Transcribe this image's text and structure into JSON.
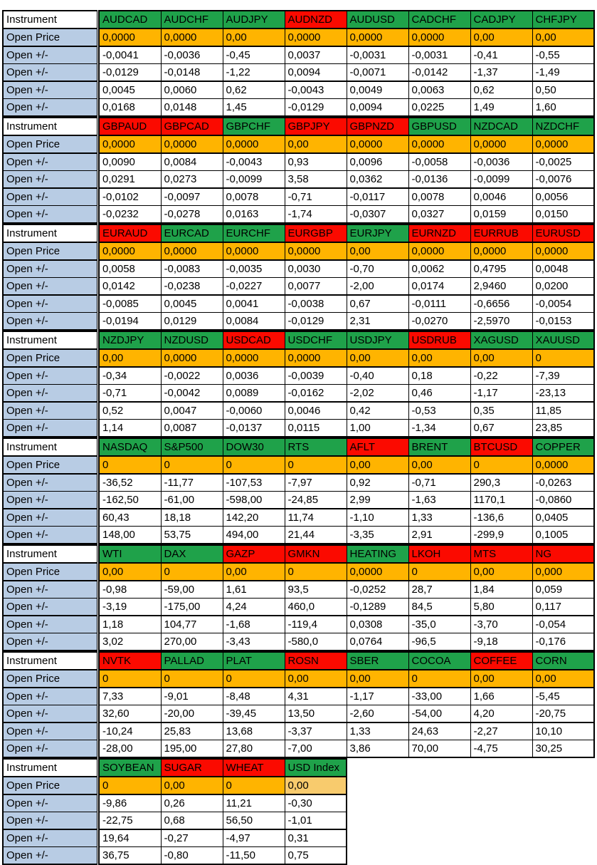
{
  "labels": {
    "instrument": "Instrument",
    "open_price": "Open Price",
    "open_change": "Open +/-"
  },
  "colors": {
    "green": "#1FA24A",
    "red": "#FB0A00",
    "orange": "#FFB400",
    "light_orange": "#F8CB6D",
    "label_blue": "#B8CCE4",
    "border": "#000000"
  },
  "blocks": [
    {
      "instruments": [
        {
          "name": "AUDCAD",
          "color": "green"
        },
        {
          "name": "AUDCHF",
          "color": "green"
        },
        {
          "name": "AUDJPY",
          "color": "green"
        },
        {
          "name": "AUDNZD",
          "color": "red"
        },
        {
          "name": "AUDUSD",
          "color": "green"
        },
        {
          "name": "CADCHF",
          "color": "green"
        },
        {
          "name": "CADJPY",
          "color": "green"
        },
        {
          "name": "CHFJPY",
          "color": "green"
        }
      ],
      "open_price": [
        "0,0000",
        "0,0000",
        "0,00",
        "0,0000",
        "0,0000",
        "0,0000",
        "0,00",
        "0,00"
      ],
      "rows": [
        [
          "-0,0041",
          "-0,0036",
          "-0,45",
          "0,0037",
          "-0,0031",
          "-0,0031",
          "-0,41",
          "-0,55"
        ],
        [
          "-0,0129",
          "-0,0148",
          "-1,22",
          "0,0094",
          "-0,0071",
          "-0,0142",
          "-1,37",
          "-1,49"
        ],
        [
          "0,0045",
          "0,0060",
          "0,62",
          "-0,0043",
          "0,0049",
          "0,0063",
          "0,62",
          "0,50"
        ],
        [
          "0,0168",
          "0,0148",
          "1,45",
          "-0,0129",
          "0,0094",
          "0,0225",
          "1,49",
          "1,60"
        ]
      ]
    },
    {
      "instruments": [
        {
          "name": "GBPAUD",
          "color": "red"
        },
        {
          "name": "GBPCAD",
          "color": "red"
        },
        {
          "name": "GBPCHF",
          "color": "green"
        },
        {
          "name": "GBPJPY",
          "color": "red"
        },
        {
          "name": "GBPNZD",
          "color": "red"
        },
        {
          "name": "GBPUSD",
          "color": "green"
        },
        {
          "name": "NZDCAD",
          "color": "green"
        },
        {
          "name": "NZDCHF",
          "color": "green"
        }
      ],
      "open_price": [
        "0,0000",
        "0,0000",
        "0,0000",
        "0,00",
        "0,0000",
        "0,0000",
        "0,0000",
        "0,0000"
      ],
      "rows": [
        [
          "0,0090",
          "0,0084",
          "-0,0043",
          "0,93",
          "0,0096",
          "-0,0058",
          "-0,0036",
          "-0,0025"
        ],
        [
          "0,0291",
          "0,0273",
          "-0,0099",
          "3,58",
          "0,0362",
          "-0,0136",
          "-0,0099",
          "-0,0076"
        ],
        [
          "-0,0102",
          "-0,0097",
          "0,0078",
          "-0,71",
          "-0,0117",
          "0,0078",
          "0,0046",
          "0,0056"
        ],
        [
          "-0,0232",
          "-0,0278",
          "0,0163",
          "-1,74",
          "-0,0307",
          "0,0327",
          "0,0159",
          "0,0150"
        ]
      ]
    },
    {
      "instruments": [
        {
          "name": "EURAUD",
          "color": "red"
        },
        {
          "name": "EURCAD",
          "color": "green"
        },
        {
          "name": "EURCHF",
          "color": "green"
        },
        {
          "name": "EURGBP",
          "color": "red"
        },
        {
          "name": "EURJPY",
          "color": "green"
        },
        {
          "name": "EURNZD",
          "color": "red"
        },
        {
          "name": "EURRUB",
          "color": "red"
        },
        {
          "name": "EURUSD",
          "color": "red"
        }
      ],
      "open_price": [
        "0,0000",
        "0,0000",
        "0,0000",
        "0,0000",
        "0,00",
        "0,0000",
        "0,0000",
        "0,0000"
      ],
      "rows": [
        [
          "0,0058",
          "-0,0083",
          "-0,0035",
          "0,0030",
          "-0,70",
          "0,0062",
          "0,4795",
          "0,0048"
        ],
        [
          "0,0142",
          "-0,0238",
          "-0,0227",
          "0,0077",
          "-2,00",
          "0,0174",
          "2,9460",
          "0,0200"
        ],
        [
          "-0,0085",
          "0,0045",
          "0,0041",
          "-0,0038",
          "0,67",
          "-0,0111",
          "-0,6656",
          "-0,0054"
        ],
        [
          "-0,0194",
          "0,0129",
          "0,0084",
          "-0,0129",
          "2,31",
          "-0,0270",
          "-2,5970",
          "-0,0153"
        ]
      ]
    },
    {
      "instruments": [
        {
          "name": "NZDJPY",
          "color": "green"
        },
        {
          "name": "NZDUSD",
          "color": "green"
        },
        {
          "name": "USDCAD",
          "color": "red"
        },
        {
          "name": "USDCHF",
          "color": "green"
        },
        {
          "name": "USDJPY",
          "color": "green"
        },
        {
          "name": "USDRUB",
          "color": "red"
        },
        {
          "name": "XAGUSD",
          "color": "green"
        },
        {
          "name": "XAUUSD",
          "color": "green"
        }
      ],
      "open_price": [
        "0,00",
        "0,0000",
        "0,0000",
        "0,0000",
        "0,00",
        "0,00",
        "0,00",
        "0"
      ],
      "rows": [
        [
          "-0,34",
          "-0,0022",
          "0,0036",
          "-0,0039",
          "-0,40",
          "0,18",
          "-0,22",
          "-7,39"
        ],
        [
          "-0,71",
          "-0,0042",
          "0,0089",
          "-0,0162",
          "-2,02",
          "0,46",
          "-1,17",
          "-23,13"
        ],
        [
          "0,52",
          "0,0047",
          "-0,0060",
          "0,0046",
          "0,42",
          "-0,53",
          "0,35",
          "11,85"
        ],
        [
          "1,14",
          "0,0087",
          "-0,0137",
          "0,0115",
          "1,00",
          "-1,34",
          "0,67",
          "23,85"
        ]
      ]
    },
    {
      "instruments": [
        {
          "name": "NASDAQ",
          "color": "green"
        },
        {
          "name": "S&P500",
          "color": "green"
        },
        {
          "name": "DOW30",
          "color": "green"
        },
        {
          "name": "RTS",
          "color": "green"
        },
        {
          "name": "AFLT",
          "color": "red"
        },
        {
          "name": "BRENT",
          "color": "green"
        },
        {
          "name": "BTCUSD",
          "color": "red"
        },
        {
          "name": "COPPER",
          "color": "green"
        }
      ],
      "open_price": [
        "0",
        "0",
        "0",
        "0",
        "0,00",
        "0,00",
        "0",
        "0,0000"
      ],
      "rows": [
        [
          "-36,52",
          "-11,77",
          "-107,53",
          "-7,97",
          "0,92",
          "-0,71",
          "290,3",
          "-0,0263"
        ],
        [
          "-162,50",
          "-61,00",
          "-598,00",
          "-24,85",
          "2,99",
          "-1,63",
          "1170,1",
          "-0,0860"
        ],
        [
          "60,43",
          "18,18",
          "142,20",
          "11,74",
          "-1,10",
          "1,33",
          "-136,6",
          "0,0405"
        ],
        [
          "148,00",
          "53,75",
          "494,00",
          "21,44",
          "-3,35",
          "2,91",
          "-299,9",
          "0,1005"
        ]
      ]
    },
    {
      "instruments": [
        {
          "name": "WTI",
          "color": "green"
        },
        {
          "name": "DAX",
          "color": "green"
        },
        {
          "name": "GAZP",
          "color": "red"
        },
        {
          "name": "GMKN",
          "color": "red"
        },
        {
          "name": "HEATING",
          "color": "green"
        },
        {
          "name": "LKOH",
          "color": "red"
        },
        {
          "name": "MTS",
          "color": "red"
        },
        {
          "name": "NG",
          "color": "red"
        }
      ],
      "open_price": [
        "0,00",
        "0",
        "0,00",
        "0",
        "0,0000",
        "0",
        "0,00",
        "0,000"
      ],
      "rows": [
        [
          "-0,98",
          "-59,00",
          "1,61",
          "93,5",
          "-0,0252",
          "28,7",
          "1,84",
          "0,059"
        ],
        [
          "-3,19",
          "-175,00",
          "4,24",
          "460,0",
          "-0,1289",
          "84,5",
          "5,80",
          "0,117"
        ],
        [
          "1,18",
          "104,77",
          "-1,68",
          "-119,4",
          "0,0308",
          "-35,0",
          "-3,70",
          "-0,054"
        ],
        [
          "3,02",
          "270,00",
          "-3,43",
          "-580,0",
          "0,0764",
          "-96,5",
          "-9,18",
          "-0,176"
        ]
      ]
    },
    {
      "instruments": [
        {
          "name": "NVTK",
          "color": "red"
        },
        {
          "name": "PALLAD",
          "color": "green"
        },
        {
          "name": "PLAT",
          "color": "green"
        },
        {
          "name": "ROSN",
          "color": "red"
        },
        {
          "name": "SBER",
          "color": "green"
        },
        {
          "name": "COCOA",
          "color": "green"
        },
        {
          "name": "COFFEE",
          "color": "red"
        },
        {
          "name": "CORN",
          "color": "green"
        }
      ],
      "open_price": [
        "0",
        "0",
        "0",
        "0,00",
        "0,00",
        "0",
        "0,00",
        "0,00"
      ],
      "rows": [
        [
          "7,33",
          "-9,01",
          "-8,48",
          "4,31",
          "-1,17",
          "-33,00",
          "1,66",
          "-5,45"
        ],
        [
          "32,60",
          "-20,00",
          "-39,45",
          "13,50",
          "-2,60",
          "-54,00",
          "4,20",
          "-20,75"
        ],
        [
          "-10,24",
          "25,83",
          "13,68",
          "-3,37",
          "1,33",
          "24,63",
          "-2,27",
          "10,10"
        ],
        [
          "-28,00",
          "195,00",
          "27,80",
          "-7,00",
          "3,86",
          "70,00",
          "-4,75",
          "30,25"
        ]
      ]
    },
    {
      "instruments": [
        {
          "name": "SOYBEAN",
          "color": "green"
        },
        {
          "name": "SUGAR",
          "color": "red"
        },
        {
          "name": "WHEAT",
          "color": "red"
        },
        {
          "name": "USD Index",
          "color": "green"
        }
      ],
      "open_price": [
        "0",
        "0,00",
        "0",
        "0,00"
      ],
      "light_cells": [
        3
      ],
      "rows": [
        [
          "-9,86",
          "0,26",
          "11,21",
          "-0,30"
        ],
        [
          "-22,75",
          "0,68",
          "56,50",
          "-1,01"
        ],
        [
          "19,64",
          "-0,27",
          "-4,97",
          "0,31"
        ],
        [
          "36,75",
          "-0,80",
          "-11,50",
          "0,75"
        ]
      ]
    }
  ]
}
